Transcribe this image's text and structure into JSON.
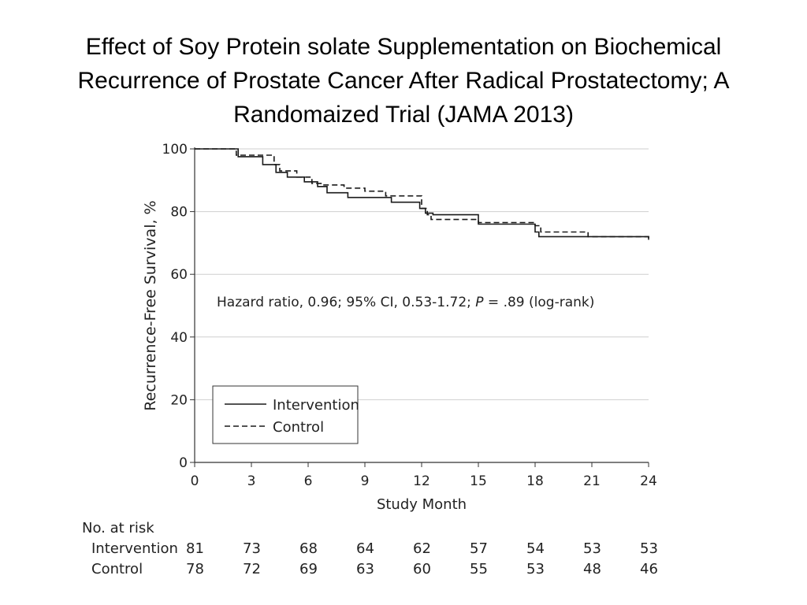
{
  "slide": {
    "title_lines": [
      "Effect of Soy Protein solate Supplementation on Biochemical",
      "Recurrence of Prostate Cancer After Radical Prostatectomy; A",
      "Randomaized Trial   (JAMA 2013)"
    ]
  },
  "chart_data": {
    "type": "line",
    "subtype": "kaplan-meier-step",
    "xlabel": "Study Month",
    "ylabel": "Recurrence-Free Survival, %",
    "xlim": [
      0,
      24
    ],
    "ylim": [
      0,
      100
    ],
    "xticks": [
      0,
      3,
      6,
      9,
      12,
      15,
      18,
      21,
      24
    ],
    "yticks": [
      0,
      20,
      40,
      60,
      80,
      100
    ],
    "grid": "horizontal",
    "annotation": {
      "prefix": "Hazard ratio, 0.96; 95% CI, 0.53-1.72; ",
      "p_symbol": "P",
      "suffix": " = .89 (log-rank)"
    },
    "legend": {
      "placement": "lower-left",
      "entries": [
        {
          "label": "Intervention",
          "style": "solid"
        },
        {
          "label": "Control",
          "style": "dashed"
        }
      ]
    },
    "series": [
      {
        "name": "Intervention",
        "style": "solid",
        "x": [
          0,
          2.1,
          2.3,
          3.6,
          4.3,
          4.9,
          5.8,
          6.5,
          7.0,
          8.1,
          10.4,
          11.9,
          12.2,
          12.6,
          15.0,
          18.0,
          18.2,
          24.0
        ],
        "y": [
          100,
          100,
          97.5,
          95,
          92.5,
          91,
          89.5,
          88,
          86,
          84.5,
          83,
          81,
          79.5,
          79,
          76,
          73.5,
          72,
          71
        ]
      },
      {
        "name": "Control",
        "style": "dashed",
        "x": [
          0,
          1.8,
          2.2,
          4.2,
          4.5,
          5.4,
          6.2,
          6.8,
          7.9,
          9.0,
          10.1,
          12.0,
          12.3,
          12.5,
          15.0,
          18.0,
          18.3,
          20.8,
          24.0
        ],
        "y": [
          100,
          100,
          98,
          95,
          93,
          91,
          89,
          88.5,
          87.5,
          86.5,
          85,
          81,
          79,
          77.5,
          76.5,
          75.5,
          73.5,
          72,
          71.5
        ]
      }
    ],
    "risk_table": {
      "title": "No. at risk",
      "months": [
        0,
        3,
        6,
        9,
        12,
        15,
        18,
        21,
        24
      ],
      "rows": [
        {
          "label": "Intervention",
          "values": [
            81,
            73,
            68,
            64,
            62,
            57,
            54,
            53,
            53
          ]
        },
        {
          "label": "Control",
          "values": [
            78,
            72,
            69,
            63,
            60,
            55,
            53,
            48,
            46
          ]
        }
      ]
    }
  }
}
